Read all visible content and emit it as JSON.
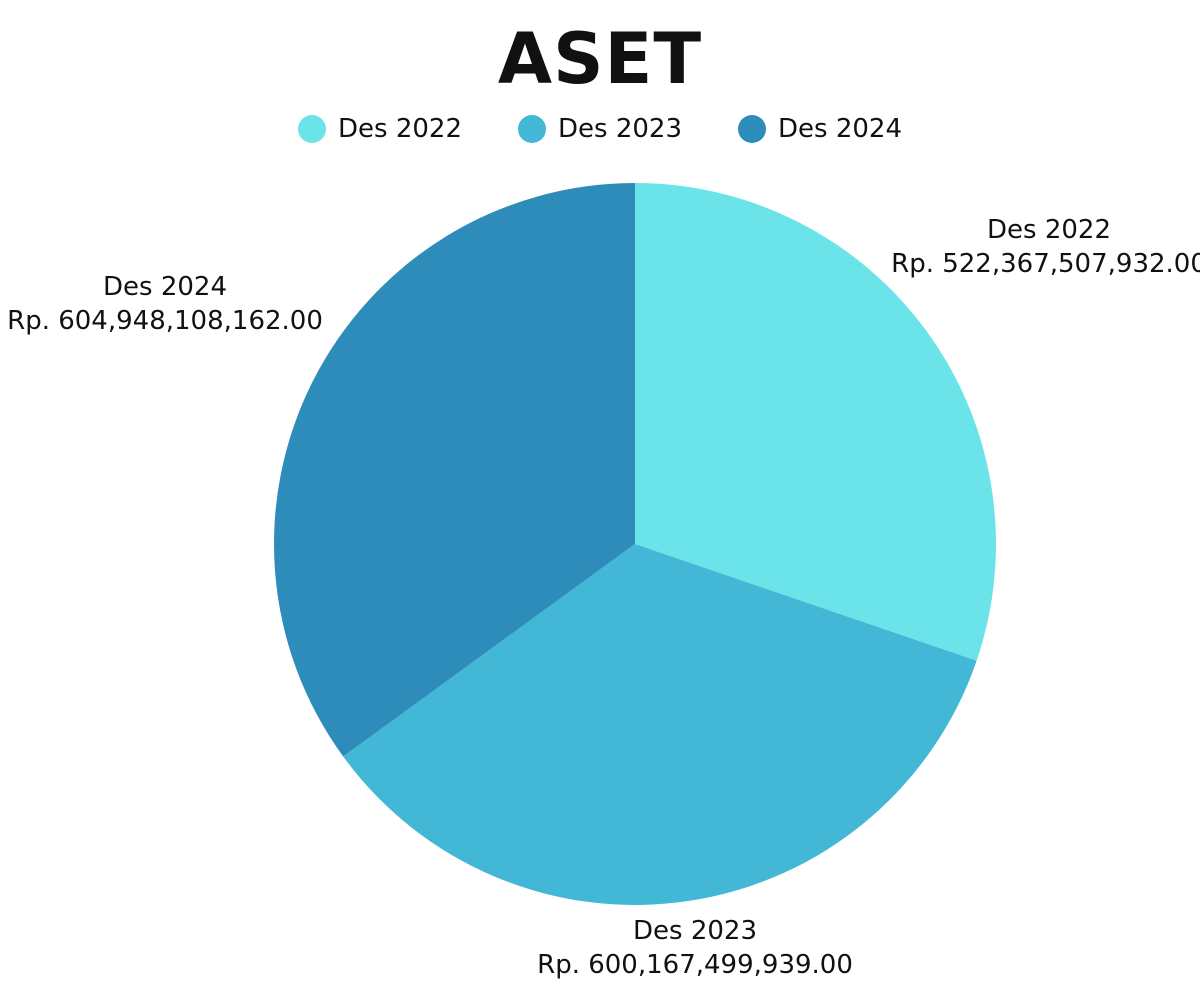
{
  "chart_data": {
    "type": "pie",
    "title": "ASET",
    "legend_position": "top",
    "series": [
      {
        "name": "Des 2022",
        "value": 522367507932.0,
        "value_label": "Rp. 522,367,507,932.00",
        "color": "#6ae4e8"
      },
      {
        "name": "Des 2023",
        "value": 600167499939.0,
        "value_label": "Rp. 600,167,499,939.00",
        "color": "#42b7d6"
      },
      {
        "name": "Des 2024",
        "value": 604948108162.0,
        "value_label": "Rp. 604,948,108,162.00",
        "color": "#2e8cba"
      }
    ]
  }
}
